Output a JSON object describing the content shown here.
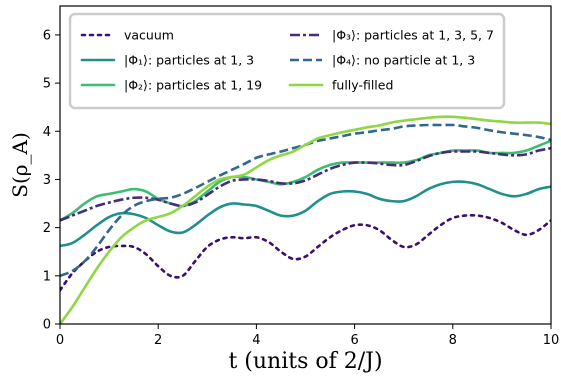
{
  "chart_data": {
    "type": "line",
    "xlabel": "t (units of 2/J)",
    "ylabel": "S(ρ_A)",
    "xlim": [
      0,
      10
    ],
    "ylim": [
      0,
      6.6
    ],
    "xticks": [
      0,
      2,
      4,
      6,
      8,
      10
    ],
    "yticks": [
      0,
      1,
      2,
      3,
      4,
      5,
      6
    ],
    "grid": false,
    "legend_placement": "top-left",
    "legend_columns": 2,
    "x": [
      0,
      0.25,
      0.5,
      0.75,
      1,
      1.25,
      1.5,
      1.75,
      2,
      2.25,
      2.5,
      2.75,
      3,
      3.25,
      3.5,
      3.75,
      4,
      4.25,
      4.5,
      4.75,
      5,
      5.25,
      5.5,
      5.75,
      6,
      6.25,
      6.5,
      6.75,
      7,
      7.25,
      7.5,
      7.75,
      8,
      8.25,
      8.5,
      8.75,
      9,
      9.25,
      9.5,
      9.75,
      10
    ],
    "series": [
      {
        "name": "vacuum",
        "color": "#3b0f70",
        "dash": "dotted",
        "values": [
          0.7,
          1.05,
          1.3,
          1.5,
          1.6,
          1.62,
          1.6,
          1.45,
          1.2,
          1.0,
          1.0,
          1.3,
          1.6,
          1.75,
          1.8,
          1.78,
          1.8,
          1.7,
          1.5,
          1.35,
          1.4,
          1.6,
          1.8,
          1.95,
          2.05,
          2.05,
          1.95,
          1.75,
          1.6,
          1.65,
          1.85,
          2.05,
          2.2,
          2.25,
          2.25,
          2.2,
          2.1,
          1.95,
          1.85,
          1.95,
          2.15
        ]
      },
      {
        "name": "|Φ₁⟩: particles at 1, 3",
        "color": "#21908d",
        "dash": "solid",
        "values": [
          1.62,
          1.68,
          1.85,
          2.05,
          2.22,
          2.3,
          2.28,
          2.2,
          2.05,
          1.92,
          1.9,
          2.05,
          2.25,
          2.42,
          2.5,
          2.48,
          2.45,
          2.35,
          2.25,
          2.25,
          2.35,
          2.55,
          2.7,
          2.75,
          2.75,
          2.7,
          2.6,
          2.55,
          2.55,
          2.65,
          2.8,
          2.9,
          2.95,
          2.95,
          2.9,
          2.8,
          2.7,
          2.65,
          2.7,
          2.8,
          2.85
        ]
      },
      {
        "name": "|Φ₂⟩: particles at 1, 19",
        "color": "#3dbc74",
        "dash": "solid",
        "values": [
          2.15,
          2.3,
          2.5,
          2.65,
          2.7,
          2.75,
          2.8,
          2.75,
          2.6,
          2.5,
          2.45,
          2.55,
          2.75,
          2.95,
          3.05,
          3.05,
          3.0,
          2.95,
          2.9,
          2.95,
          3.05,
          3.2,
          3.3,
          3.35,
          3.35,
          3.35,
          3.35,
          3.35,
          3.35,
          3.4,
          3.5,
          3.55,
          3.6,
          3.6,
          3.6,
          3.55,
          3.55,
          3.55,
          3.6,
          3.7,
          3.8
        ]
      },
      {
        "name": "|Φ₃⟩: particles at 1, 3, 5, 7",
        "color": "#472c7a",
        "dash": "dashdot",
        "values": [
          2.15,
          2.25,
          2.35,
          2.45,
          2.52,
          2.58,
          2.62,
          2.62,
          2.58,
          2.5,
          2.45,
          2.52,
          2.68,
          2.85,
          2.97,
          3.0,
          3.0,
          2.97,
          2.92,
          2.92,
          2.98,
          3.1,
          3.22,
          3.3,
          3.35,
          3.35,
          3.33,
          3.3,
          3.3,
          3.38,
          3.48,
          3.55,
          3.58,
          3.58,
          3.58,
          3.55,
          3.52,
          3.5,
          3.52,
          3.6,
          3.65
        ]
      },
      {
        "name": "|Φ₄⟩: no particle at 1, 3",
        "color": "#31688e",
        "dash": "dashed",
        "values": [
          1.0,
          1.1,
          1.3,
          1.6,
          1.95,
          2.25,
          2.45,
          2.55,
          2.6,
          2.62,
          2.7,
          2.82,
          2.95,
          3.08,
          3.2,
          3.32,
          3.45,
          3.52,
          3.58,
          3.65,
          3.72,
          3.8,
          3.85,
          3.9,
          3.95,
          3.98,
          4.02,
          4.05,
          4.1,
          4.12,
          4.13,
          4.13,
          4.13,
          4.1,
          4.07,
          4.02,
          3.98,
          3.95,
          3.92,
          3.88,
          3.82
        ]
      },
      {
        "name": "fully-filled",
        "color": "#8fd744",
        "dash": "solid",
        "values": [
          0.0,
          0.35,
          0.75,
          1.15,
          1.5,
          1.8,
          2.0,
          2.15,
          2.22,
          2.3,
          2.45,
          2.65,
          2.85,
          3.0,
          3.05,
          3.1,
          3.25,
          3.4,
          3.5,
          3.58,
          3.72,
          3.85,
          3.92,
          3.98,
          4.03,
          4.08,
          4.12,
          4.18,
          4.22,
          4.25,
          4.28,
          4.3,
          4.3,
          4.28,
          4.25,
          4.22,
          4.2,
          4.18,
          4.18,
          4.18,
          4.15
        ]
      }
    ]
  }
}
